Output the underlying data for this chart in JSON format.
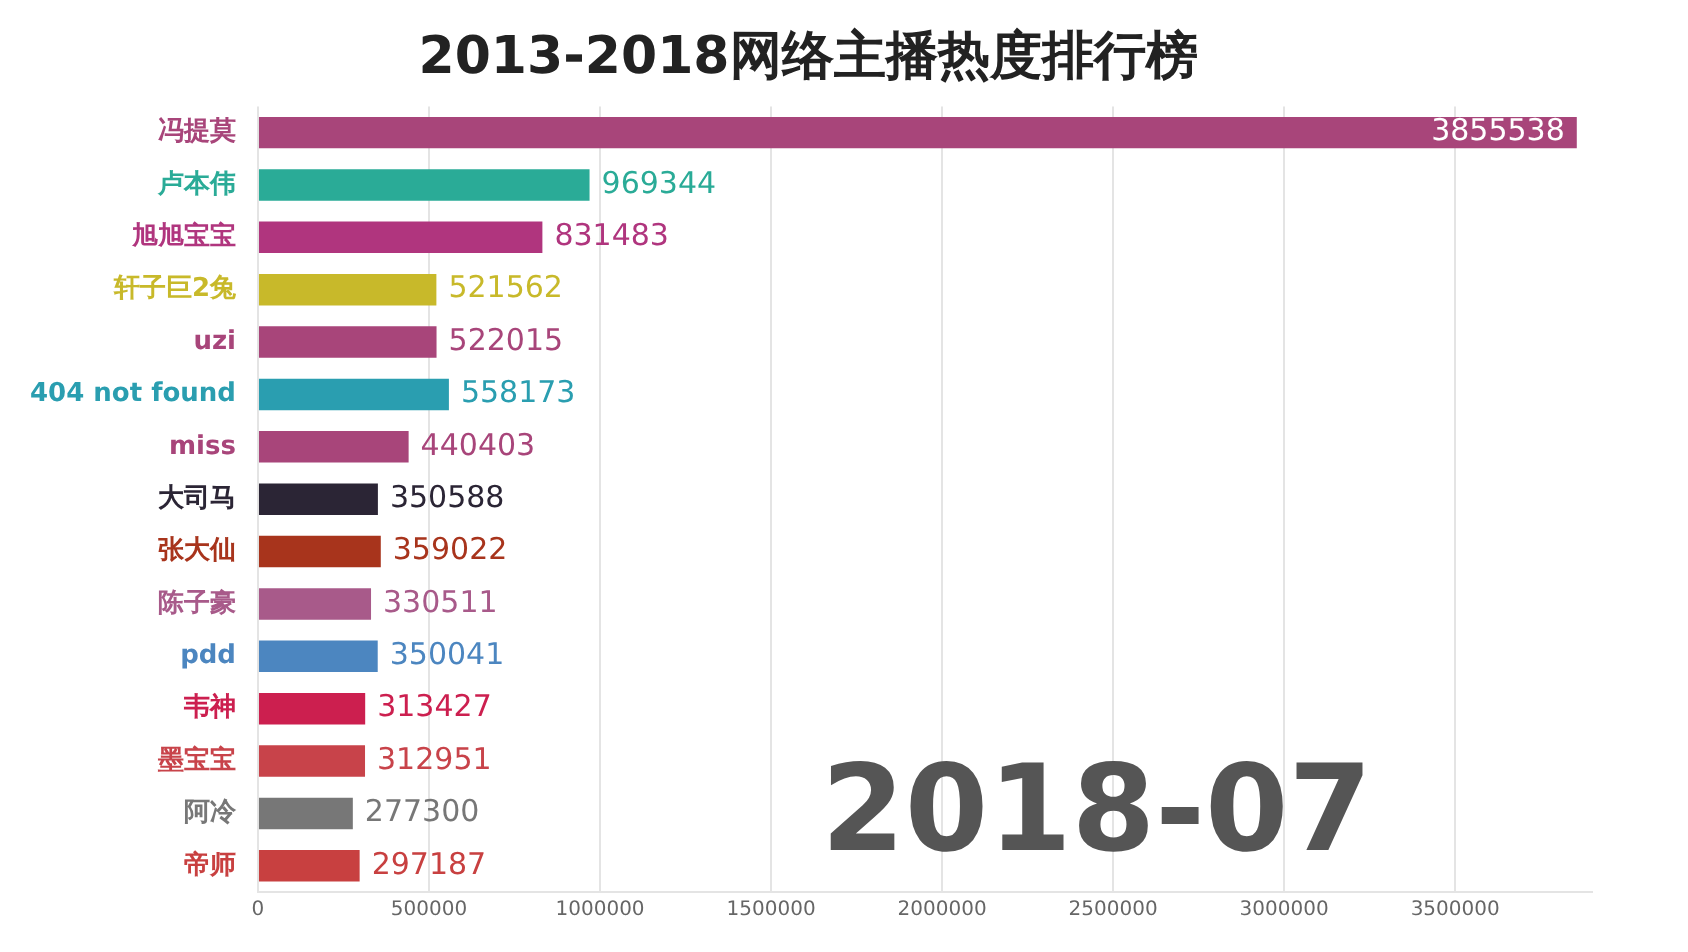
{
  "chart_data": {
    "type": "bar",
    "orientation": "horizontal",
    "title": "2013-2018网络主播热度排行榜",
    "categories": [
      "冯提莫",
      "卢本伟",
      "旭旭宝宝",
      "轩子巨2兔",
      "uzi",
      "404 not found",
      "miss",
      "大司马",
      "张大仙",
      "陈子豪",
      "pdd",
      "韦神",
      "墨宝宝",
      "阿冷",
      "帝师"
    ],
    "values": [
      3855538,
      969344,
      831483,
      521562,
      522015,
      558173,
      440403,
      350588,
      359022,
      330511,
      350041,
      313427,
      312951,
      277300,
      297187
    ],
    "colors": [
      "#a8457a",
      "#2aab97",
      "#b0357e",
      "#c8b92a",
      "#a8457a",
      "#2a9eb0",
      "#a8457a",
      "#2b2535",
      "#a8341c",
      "#a85a8a",
      "#4c86c0",
      "#cc1f4f",
      "#c8434a",
      "#777777",
      "#c84040"
    ],
    "xlim": [
      0,
      3900000
    ],
    "xticks": [
      0,
      500000,
      1000000,
      1500000,
      2000000,
      2500000,
      3000000,
      3500000
    ],
    "grid": "x",
    "data_labels": true,
    "legend": false,
    "annotations": [
      {
        "text": "2018-07"
      }
    ]
  }
}
